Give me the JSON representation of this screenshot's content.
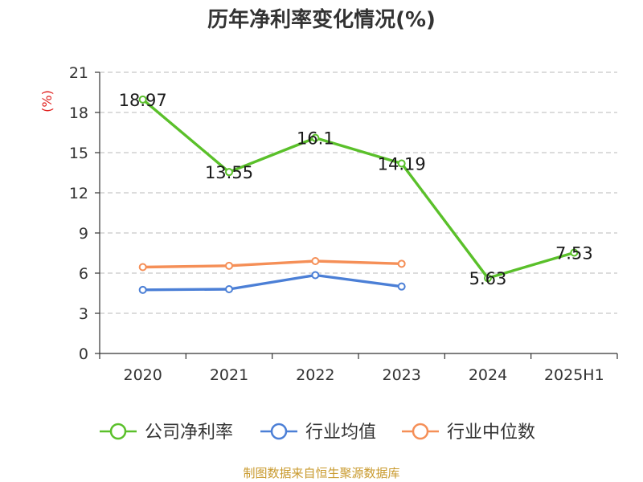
{
  "chart_data": {
    "type": "line",
    "title": "历年净利率变化情况(%)",
    "ylabel": "(%)",
    "categories": [
      "2020",
      "2021",
      "2022",
      "2023",
      "2024",
      "2025H1"
    ],
    "ylim": [
      0,
      21
    ],
    "yticks": [
      0,
      3,
      6,
      9,
      12,
      15,
      18,
      21
    ],
    "grid": true,
    "legend_position": "bottom",
    "series": [
      {
        "name": "公司净利率",
        "color": "#5ac02a",
        "values": [
          18.97,
          13.55,
          16.1,
          14.19,
          5.63,
          7.53
        ],
        "labels": [
          "18.97",
          "13.55",
          "16.1",
          "14.19",
          "5.63",
          "7.53"
        ]
      },
      {
        "name": "行业均值",
        "color": "#4b7fd6",
        "values": [
          4.75,
          4.8,
          5.85,
          5.0,
          null,
          null
        ]
      },
      {
        "name": "行业中位数",
        "color": "#f58f57",
        "values": [
          6.45,
          6.55,
          6.9,
          6.7,
          null,
          null
        ]
      }
    ]
  },
  "footer": {
    "source": "制图数据来自恒生聚源数据库"
  }
}
